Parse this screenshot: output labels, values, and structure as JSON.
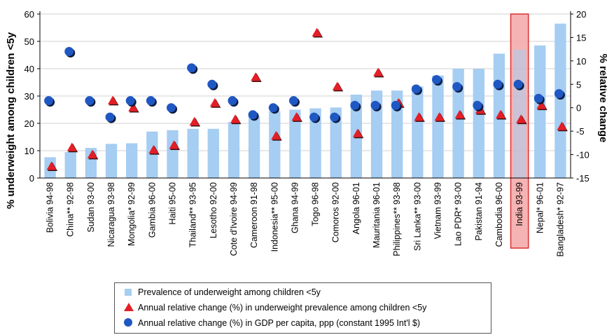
{
  "chart_data": {
    "type": "bar",
    "categories": [
      "Bolivia 94-98",
      "China** 92-98",
      "Sudan 93-00",
      "Nicaragua 93-98",
      "Mongolia* 92-99",
      "Gambia 96-00",
      "Haiti 95-00",
      "Thailand** 93-95",
      "Lesotho 92-00",
      "Cote d'Ivoire 94-99",
      "Cameroon 91-98",
      "Indonesia** 95-00",
      "Ghana 94-99",
      "Togo 96-98",
      "Comoros 92-00",
      "Angola 96-01",
      "Mauritania 96-01",
      "Philippines** 93-98",
      "Sri Lanka** 93-00",
      "Vietnam 93-99",
      "Lao PDR* 93-00",
      "Pakistan 91-94",
      "Cambodia 96-00",
      "India 93-99",
      "Nepal* 96-01",
      "Bangladesh* 92-97"
    ],
    "highlight_category": "India 93-99",
    "highlight_color": "#f4a6a6",
    "series": [
      {
        "name": "Prevalence of underweight among children <5y",
        "kind": "bar",
        "axis": "left",
        "color": "#a6cdf2",
        "values": [
          7.6,
          9.5,
          11,
          12.5,
          12.7,
          17,
          17.5,
          18,
          18,
          20.5,
          22.5,
          24.5,
          25,
          25.5,
          25.8,
          30.5,
          32,
          32,
          33.5,
          37.5,
          40,
          40,
          45.5,
          47,
          48.5,
          56.5
        ]
      },
      {
        "name": "Annual relative change (%) in underweight prevalence among children <5y",
        "kind": "triangle",
        "axis": "right",
        "color": "#e41e26",
        "values": [
          -12.5,
          -8.5,
          -10,
          1.5,
          0,
          -9,
          -8,
          -3,
          1,
          -2.5,
          6.5,
          -6,
          -2,
          16,
          4.5,
          -5.5,
          7.5,
          1,
          -2,
          -2,
          -1.5,
          -0.5,
          -1.5,
          -2.5,
          0.5,
          -4
        ]
      },
      {
        "name": "Annual relative change (%) in GDP per capita, ppp (constant 1995 Int'l $)",
        "kind": "circle",
        "axis": "right",
        "color": "#1f57c3",
        "values": [
          1.5,
          12,
          1.5,
          -2,
          1.5,
          1.5,
          0,
          8.5,
          5,
          1.5,
          -1.5,
          0,
          1.5,
          -2,
          -2,
          0.5,
          0.5,
          0.5,
          4,
          6,
          4.5,
          0.5,
          5,
          5,
          2,
          3
        ]
      }
    ],
    "ylabel": "% underweight among children <5y",
    "y2label": "% relative change",
    "ylim": [
      0,
      60
    ],
    "y2lim": [
      -15,
      20
    ],
    "yticks": [
      "0",
      "10",
      "20",
      "30",
      "40",
      "50",
      "60"
    ],
    "y2ticks": [
      "-15",
      "-10",
      "-5",
      "0",
      "5",
      "10",
      "15",
      "20"
    ],
    "legend": {
      "position": "bottom",
      "items": [
        "Prevalence of underweight among children <5y",
        "Annual relative change (%) in underweight prevalence among children <5y",
        "Annual relative change (%) in GDP per capita, ppp (constant 1995 Int'l $)"
      ]
    }
  }
}
